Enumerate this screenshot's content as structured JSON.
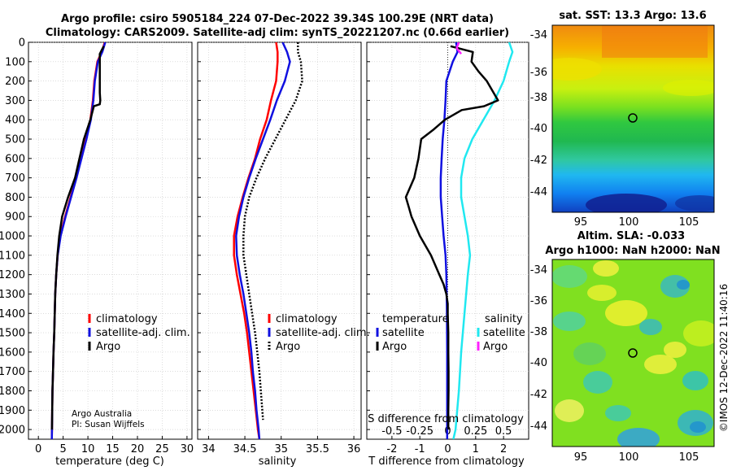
{
  "header": {
    "line1": "Argo profile: csiro 5905184_224 07-Dec-2022 39.34S 100.29E (NRT data)",
    "line2": "Climatology: CARS2009. Satellite-adj clim: synTS_20221207.nc (0.66d earlier)"
  },
  "footer": {
    "credit1": "Argo Australia",
    "credit2": "PI: Susan Wijffels",
    "stamp": "©IMOS 12-Dec-2022 11:40:16"
  },
  "colors": {
    "red": "#ff0000",
    "blue": "#1010e0",
    "black": "#000000",
    "cyan": "#20e8f0",
    "magenta": "#ff20ff"
  },
  "chart_data": [
    {
      "id": "temperature",
      "type": "line",
      "xlabel": "temperature (deg C)",
      "ylabel": "",
      "xlim": [
        -2,
        31
      ],
      "ylim": [
        2050,
        0
      ],
      "xticks": [
        0,
        5,
        10,
        15,
        20,
        25,
        30
      ],
      "xtick_labels": [
        "0",
        "5",
        "10",
        "15",
        "20",
        "25",
        "30"
      ],
      "yticks": [
        0,
        100,
        200,
        300,
        400,
        500,
        600,
        700,
        800,
        900,
        1000,
        1100,
        1200,
        1300,
        1400,
        1500,
        1600,
        1700,
        1800,
        1900,
        2000
      ],
      "ytick_labels": [
        "0",
        "100",
        "200",
        "300",
        "400",
        "500",
        "600",
        "700",
        "800",
        "900",
        "1000",
        "1100",
        "1200",
        "1300",
        "1400",
        "1500",
        "1600",
        "1700",
        "1800",
        "1900",
        "2000"
      ],
      "legend": [
        "climatology",
        "satellite-adj. clim.",
        "Argo"
      ],
      "series": [
        {
          "name": "climatology",
          "color": "#ff0000",
          "width": 2.5,
          "dash": "",
          "depth": [
            0,
            50,
            100,
            200,
            300,
            400,
            500,
            600,
            700,
            800,
            900,
            1000,
            1100,
            1200,
            1300,
            1400,
            1500,
            1600,
            1700,
            1800,
            1900,
            2000,
            2050
          ],
          "values": [
            13.4,
            12.8,
            11.9,
            11.3,
            11.0,
            10.5,
            9.6,
            8.6,
            7.6,
            6.5,
            5.4,
            4.4,
            3.9,
            3.6,
            3.4,
            3.3,
            3.2,
            3.05,
            2.95,
            2.85,
            2.8,
            2.75,
            2.72
          ]
        },
        {
          "name": "satellite-adj. clim.",
          "color": "#1010e0",
          "width": 2.5,
          "dash": "",
          "depth": [
            0,
            50,
            100,
            200,
            300,
            400,
            500,
            600,
            700,
            800,
            900,
            1000,
            1100,
            1200,
            1300,
            1400,
            1500,
            1600,
            1700,
            1800,
            1900,
            2000,
            2050
          ],
          "values": [
            13.5,
            12.9,
            12.0,
            11.4,
            11.1,
            10.6,
            9.7,
            8.7,
            7.7,
            6.6,
            5.5,
            4.5,
            3.9,
            3.6,
            3.4,
            3.3,
            3.2,
            3.05,
            2.95,
            2.85,
            2.8,
            2.75,
            2.72
          ]
        },
        {
          "name": "Argo",
          "color": "#000000",
          "width": 2.5,
          "dash": "",
          "depth": [
            20,
            40,
            60,
            100,
            150,
            200,
            260,
            300,
            320,
            330,
            400,
            500,
            600,
            700,
            800,
            900,
            1000,
            1100,
            1200,
            1300,
            1400,
            1500,
            1600,
            1700,
            1800,
            1900,
            2000
          ],
          "values": [
            13.2,
            12.8,
            12.4,
            12.4,
            12.4,
            12.4,
            12.4,
            12.5,
            12.4,
            11.2,
            10.5,
            9.2,
            8.3,
            7.4,
            6.0,
            4.8,
            4.2,
            3.85,
            3.6,
            3.4,
            3.3,
            3.2,
            3.05,
            2.95,
            2.85,
            2.8,
            2.75
          ]
        }
      ]
    },
    {
      "id": "salinity",
      "type": "line",
      "xlabel": "salinity",
      "ylabel": "",
      "xlim": [
        33.85,
        36.1
      ],
      "ylim": [
        2050,
        0
      ],
      "xticks": [
        34,
        34.5,
        35,
        35.5,
        36
      ],
      "xtick_labels": [
        "34",
        "34.5",
        "35",
        "35.5",
        "36"
      ],
      "legend": [
        "climatology",
        "satellite-adj. clim.",
        "Argo"
      ],
      "series": [
        {
          "name": "climatology",
          "color": "#ff0000",
          "width": 2.5,
          "dash": "",
          "depth": [
            0,
            50,
            100,
            200,
            300,
            400,
            500,
            600,
            700,
            800,
            900,
            1000,
            1100,
            1200,
            1300,
            1400,
            1500,
            1600,
            1700,
            1800,
            1900,
            2000,
            2050
          ],
          "values": [
            34.93,
            34.95,
            34.95,
            34.93,
            34.86,
            34.8,
            34.71,
            34.64,
            34.55,
            34.47,
            34.4,
            34.35,
            34.35,
            34.39,
            34.44,
            34.49,
            34.53,
            34.56,
            34.59,
            34.62,
            34.65,
            34.68,
            34.7
          ]
        },
        {
          "name": "satellite-adj. clim.",
          "color": "#1010e0",
          "width": 2.5,
          "dash": "",
          "depth": [
            0,
            50,
            100,
            200,
            300,
            400,
            500,
            600,
            700,
            800,
            900,
            1000,
            1100,
            1200,
            1300,
            1400,
            1500,
            1600,
            1700,
            1800,
            1900,
            2000,
            2050
          ],
          "values": [
            35.02,
            35.08,
            35.12,
            35.05,
            34.94,
            34.85,
            34.75,
            34.65,
            34.56,
            34.48,
            34.42,
            34.38,
            34.39,
            34.43,
            34.48,
            34.52,
            34.56,
            34.59,
            34.61,
            34.64,
            34.66,
            34.69,
            34.7
          ]
        },
        {
          "name": "Argo",
          "color": "#000000",
          "width": 2.5,
          "dash": "2 2",
          "depth": [
            0,
            50,
            100,
            200,
            300,
            400,
            500,
            600,
            700,
            800,
            900,
            1000,
            1100,
            1200,
            1300,
            1400,
            1500,
            1600,
            1700,
            1800,
            1900,
            1950
          ],
          "values": [
            35.23,
            35.23,
            35.27,
            35.29,
            35.2,
            35.06,
            34.92,
            34.78,
            34.66,
            34.56,
            34.5,
            34.48,
            34.48,
            34.52,
            34.56,
            34.6,
            34.64,
            34.67,
            34.7,
            34.72,
            34.74,
            34.75
          ]
        }
      ]
    },
    {
      "id": "difference",
      "type": "line",
      "xlabel": "T difference from climatology",
      "top_label": "S difference from climatology",
      "xlim": [
        -2.9,
        2.9
      ],
      "ylim": [
        2050,
        0
      ],
      "xticks": [
        -2,
        -1,
        0,
        1,
        2
      ],
      "xtick_labels": [
        "-2",
        "-1",
        "0",
        "1",
        "2"
      ],
      "s_ticks": [
        -0.5,
        -0.25,
        0,
        0.25,
        0.5
      ],
      "s_tick_labels": [
        "-0.5",
        "-0.25",
        "0",
        "0.25",
        "0.5"
      ],
      "legend_temp_title": "temperature",
      "legend_sal_title": "salinity",
      "legend": [
        "satellite",
        "Argo",
        "satellite",
        "Argo"
      ],
      "series": [
        {
          "name": "T satellite",
          "color": "#1010e0",
          "width": 2.5,
          "dash": "",
          "depth": [
            0,
            50,
            100,
            200,
            300,
            400,
            500,
            600,
            700,
            800,
            900,
            1000,
            1100,
            1200,
            1400,
            1600,
            1800,
            2000,
            2050
          ],
          "values": [
            0.3,
            0.35,
            0.18,
            -0.05,
            -0.08,
            -0.12,
            -0.18,
            -0.22,
            -0.25,
            -0.25,
            -0.2,
            -0.15,
            -0.08,
            -0.05,
            -0.03,
            -0.02,
            -0.02,
            -0.02,
            -0.02
          ]
        },
        {
          "name": "S satellite",
          "color": "#20e8f0",
          "width": 2.5,
          "dash": "",
          "depth": [
            0,
            50,
            100,
            200,
            300,
            400,
            500,
            600,
            700,
            800,
            900,
            1000,
            1100,
            1200,
            1400,
            1600,
            1800,
            2000,
            2050
          ],
          "values": [
            0.55,
            0.58,
            0.55,
            0.5,
            0.42,
            0.32,
            0.22,
            0.15,
            0.12,
            0.12,
            0.15,
            0.18,
            0.2,
            0.18,
            0.15,
            0.12,
            0.1,
            0.07,
            0.05
          ]
        },
        {
          "name": "T Argo",
          "color": "#000000",
          "width": 2.5,
          "dash": "",
          "depth": [
            20,
            50,
            100,
            150,
            200,
            250,
            300,
            330,
            350,
            400,
            450,
            500,
            600,
            700,
            800,
            850,
            900,
            1000,
            1100,
            1200,
            1250,
            1300,
            1350,
            1400,
            1500,
            1600,
            1700,
            1800,
            1900,
            2000
          ],
          "values": [
            0.1,
            0.9,
            0.85,
            1.1,
            1.4,
            1.6,
            1.8,
            1.3,
            0.5,
            -0.1,
            -0.5,
            -0.95,
            -1.05,
            -1.2,
            -1.5,
            -1.4,
            -1.3,
            -1.0,
            -0.6,
            -0.3,
            -0.15,
            -0.05,
            0.0,
            0.0,
            0.02,
            0.02,
            0.03,
            0.03,
            0.02,
            0.02
          ]
        },
        {
          "name": "S Argo",
          "color": "#ff20ff",
          "width": 2.5,
          "dash": "",
          "depth": [
            0,
            30,
            60
          ],
          "values": [
            0.1,
            0.08,
            0.12
          ]
        }
      ]
    }
  ],
  "maps": [
    {
      "id": "sst-map",
      "title": "sat. SST: 13.3  Argo: 13.6",
      "xticks": [
        "95",
        "100",
        "105"
      ],
      "yticks": [
        "-34",
        "-36",
        "-38",
        "-40",
        "-42",
        "-44"
      ],
      "marker": {
        "lon": 100.29,
        "lat": -39.34
      }
    },
    {
      "id": "sla-map",
      "title1": "Altim. SLA: -0.033",
      "title2": "Argo h1000: NaN  h2000: NaN",
      "xticks": [
        "95",
        "100",
        "105"
      ],
      "yticks": [
        "-34",
        "-36",
        "-38",
        "-40",
        "-42",
        "-44"
      ],
      "marker": {
        "lon": 100.29,
        "lat": -39.34
      }
    }
  ]
}
